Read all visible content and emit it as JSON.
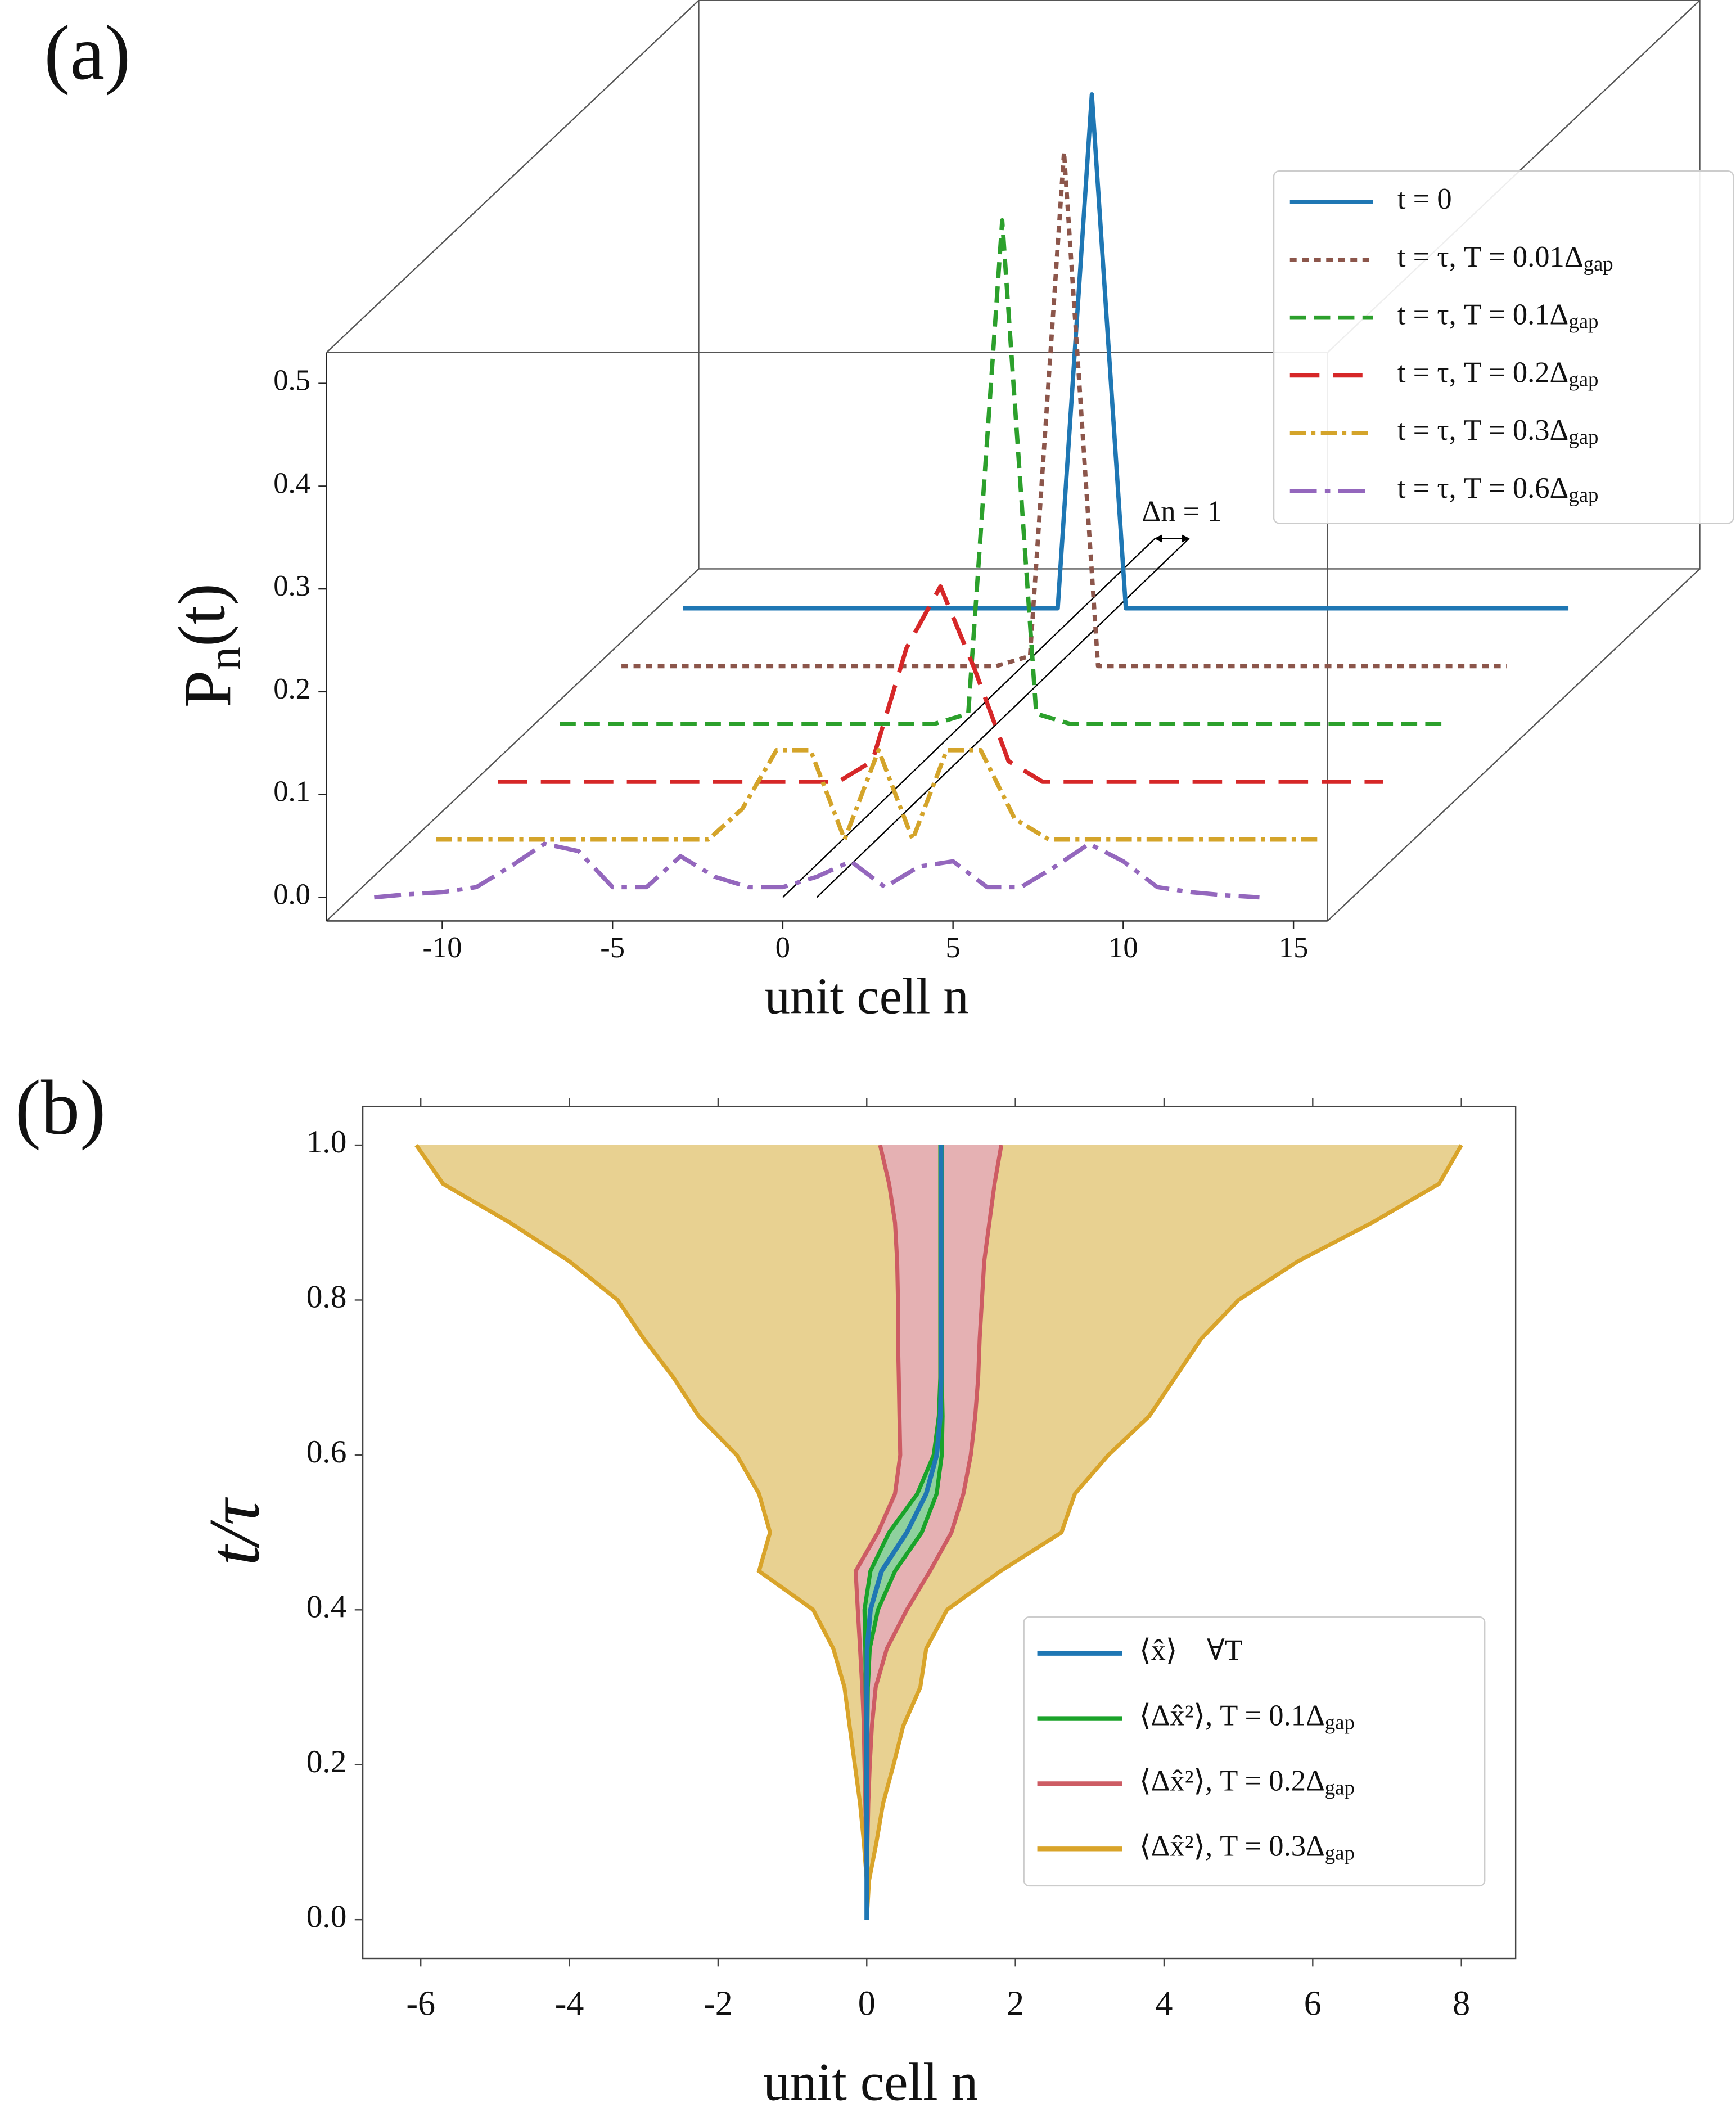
{
  "chart_data": [
    {
      "type": "waterfall",
      "panel_label": "(a)",
      "xlabel": "unit cell n",
      "ylabel": "Pn(t)",
      "annotation": "Δn = 1",
      "xlim": [
        -13.4,
        16
      ],
      "ylim": [
        -0.023,
        0.53
      ],
      "xticks": [
        -10,
        -5,
        0,
        5,
        10,
        15
      ],
      "yticks": [
        {
          "value": 0,
          "label": "0.0"
        },
        0.1,
        0.2,
        0.3,
        0.4,
        0.5
      ],
      "x": [
        -12,
        -11,
        -10,
        -9,
        -8,
        -7,
        -6,
        -5,
        -4,
        -3,
        -2,
        -1,
        0,
        1,
        2,
        3,
        4,
        5,
        6,
        7,
        8,
        9,
        10,
        11,
        12,
        13,
        14
      ],
      "series": [
        {
          "name": "t = 0",
          "color": "#1f77b4",
          "linestyle": "solid",
          "values": [
            0,
            0,
            0,
            0,
            0,
            0,
            0,
            0,
            0,
            0,
            0,
            0,
            0.5,
            0,
            0,
            0,
            0,
            0,
            0,
            0,
            0,
            0,
            0,
            0,
            0,
            0,
            0
          ]
        },
        {
          "name": "t = τ, T = 0.01Δgap",
          "color": "#8c564b",
          "linestyle": "dotted",
          "values": [
            0,
            0,
            0,
            0,
            0,
            0,
            0,
            0,
            0,
            0,
            0,
            0,
            0.01,
            0.5,
            0,
            0,
            0,
            0,
            0,
            0,
            0,
            0,
            0,
            0,
            0,
            0,
            0
          ]
        },
        {
          "name": "t = τ, T = 0.1Δgap",
          "color": "#2ca02c",
          "linestyle": "dashed",
          "values": [
            0,
            0,
            0,
            0,
            0,
            0,
            0,
            0,
            0,
            0,
            0,
            0,
            0.01,
            0.49,
            0.01,
            0,
            0,
            0,
            0,
            0,
            0,
            0,
            0,
            0,
            0,
            0,
            0
          ]
        },
        {
          "name": "t = τ, T = 0.2Δgap",
          "color": "#d62728",
          "linestyle": "longdash",
          "values": [
            0,
            0,
            0,
            0,
            0,
            0,
            0,
            0,
            0,
            0,
            0,
            0.02,
            0.13,
            0.19,
            0.11,
            0.02,
            0,
            0,
            0,
            0,
            0,
            0,
            0,
            0,
            0,
            0,
            0
          ]
        },
        {
          "name": "t = τ, T = 0.3Δgap",
          "color": "#d4a42a",
          "linestyle": "dashdot",
          "values": [
            0,
            0,
            0,
            0,
            0,
            0,
            0,
            0,
            0,
            0.03,
            0.087,
            0.087,
            0,
            0.087,
            0,
            0.087,
            0.087,
            0.02,
            0,
            0,
            0,
            0,
            0,
            0,
            0,
            0,
            0
          ]
        },
        {
          "name": "t = τ, T = 0.6Δgap",
          "color": "#9467bd",
          "linestyle": "longdashdot",
          "values": [
            0,
            0.003,
            0.005,
            0.01,
            0.03,
            0.052,
            0.045,
            0.01,
            0.01,
            0.04,
            0.02,
            0.01,
            0.01,
            0.02,
            0.035,
            0.01,
            0.03,
            0.035,
            0.01,
            0.01,
            0.03,
            0.052,
            0.035,
            0.01,
            0.005,
            0.002,
            0
          ]
        }
      ]
    },
    {
      "type": "band",
      "panel_label": "(b)",
      "xlabel": "unit cell n",
      "ylabel": "t/τ",
      "xlim": [
        -6.78,
        8.73
      ],
      "ylim": [
        -0.05,
        1.05
      ],
      "xticks": [
        -6,
        -4,
        -2,
        0,
        2,
        4,
        6,
        8
      ],
      "yticks": [
        {
          "value": 0,
          "label": "0.0"
        },
        0.2,
        0.4,
        0.6,
        0.8,
        {
          "value": 1,
          "label": "1.0"
        }
      ],
      "t": [
        0,
        0.05,
        0.1,
        0.15,
        0.2,
        0.25,
        0.3,
        0.35,
        0.4,
        0.45,
        0.5,
        0.55,
        0.6,
        0.65,
        0.7,
        0.75,
        0.8,
        0.85,
        0.9,
        0.95,
        1
      ],
      "series": [
        {
          "name": "⟨x̂⟩    ∀T",
          "color": "#1f77b4",
          "values": [
            0,
            0,
            0,
            0,
            0,
            0,
            0,
            0.005,
            0.05,
            0.2,
            0.54,
            0.8,
            0.94,
            0.99,
            1,
            1,
            1,
            1,
            1,
            1,
            1
          ]
        },
        {
          "name": "⟨Δx̂²⟩, T = 0.1Δgap",
          "color": "#1aa32a",
          "fill": "#8fd19e",
          "lower": [
            0,
            0,
            0,
            -0.005,
            -0.01,
            -0.01,
            -0.015,
            -0.02,
            -0.03,
            0.05,
            0.3,
            0.68,
            0.9,
            0.97,
            0.99,
            0.99,
            0.99,
            0.99,
            0.99,
            0.99,
            0.99
          ],
          "upper": [
            0,
            0,
            0,
            0.005,
            0.01,
            0.01,
            0.015,
            0.04,
            0.15,
            0.38,
            0.74,
            0.94,
            1.01,
            1.02,
            1.01,
            1.01,
            1.01,
            1.01,
            1.01,
            1.01,
            1.01
          ]
        },
        {
          "name": "⟨Δx̂²⟩, T = 0.2Δgap",
          "color": "#cd5c64",
          "fill": "#e5b1b3",
          "lower": [
            0,
            0,
            -0.01,
            -0.02,
            -0.03,
            -0.04,
            -0.06,
            -0.09,
            -0.12,
            -0.15,
            0.15,
            0.38,
            0.45,
            0.44,
            0.43,
            0.42,
            0.42,
            0.41,
            0.38,
            0.3,
            0.18
          ],
          "upper": [
            0,
            0,
            0.01,
            0.02,
            0.04,
            0.07,
            0.12,
            0.27,
            0.54,
            0.85,
            1.14,
            1.3,
            1.4,
            1.46,
            1.5,
            1.52,
            1.55,
            1.58,
            1.65,
            1.72,
            1.81
          ]
        },
        {
          "name": "⟨Δx̂²⟩, T = 0.3Δgap",
          "color": "#d9a42a",
          "fill": "#e8d191",
          "lower": [
            0,
            0,
            -0.04,
            -0.09,
            -0.16,
            -0.23,
            -0.3,
            -0.45,
            -0.72,
            -1.45,
            -1.3,
            -1.45,
            -1.75,
            -2.26,
            -2.6,
            -3,
            -3.35,
            -4,
            -4.8,
            -5.7,
            -6.06
          ],
          "upper": [
            0,
            0.03,
            0.13,
            0.22,
            0.36,
            0.49,
            0.72,
            0.8,
            1.08,
            1.8,
            2.62,
            2.8,
            3.25,
            3.8,
            4.15,
            4.5,
            5,
            5.8,
            6.8,
            7.7,
            8
          ]
        }
      ]
    }
  ]
}
